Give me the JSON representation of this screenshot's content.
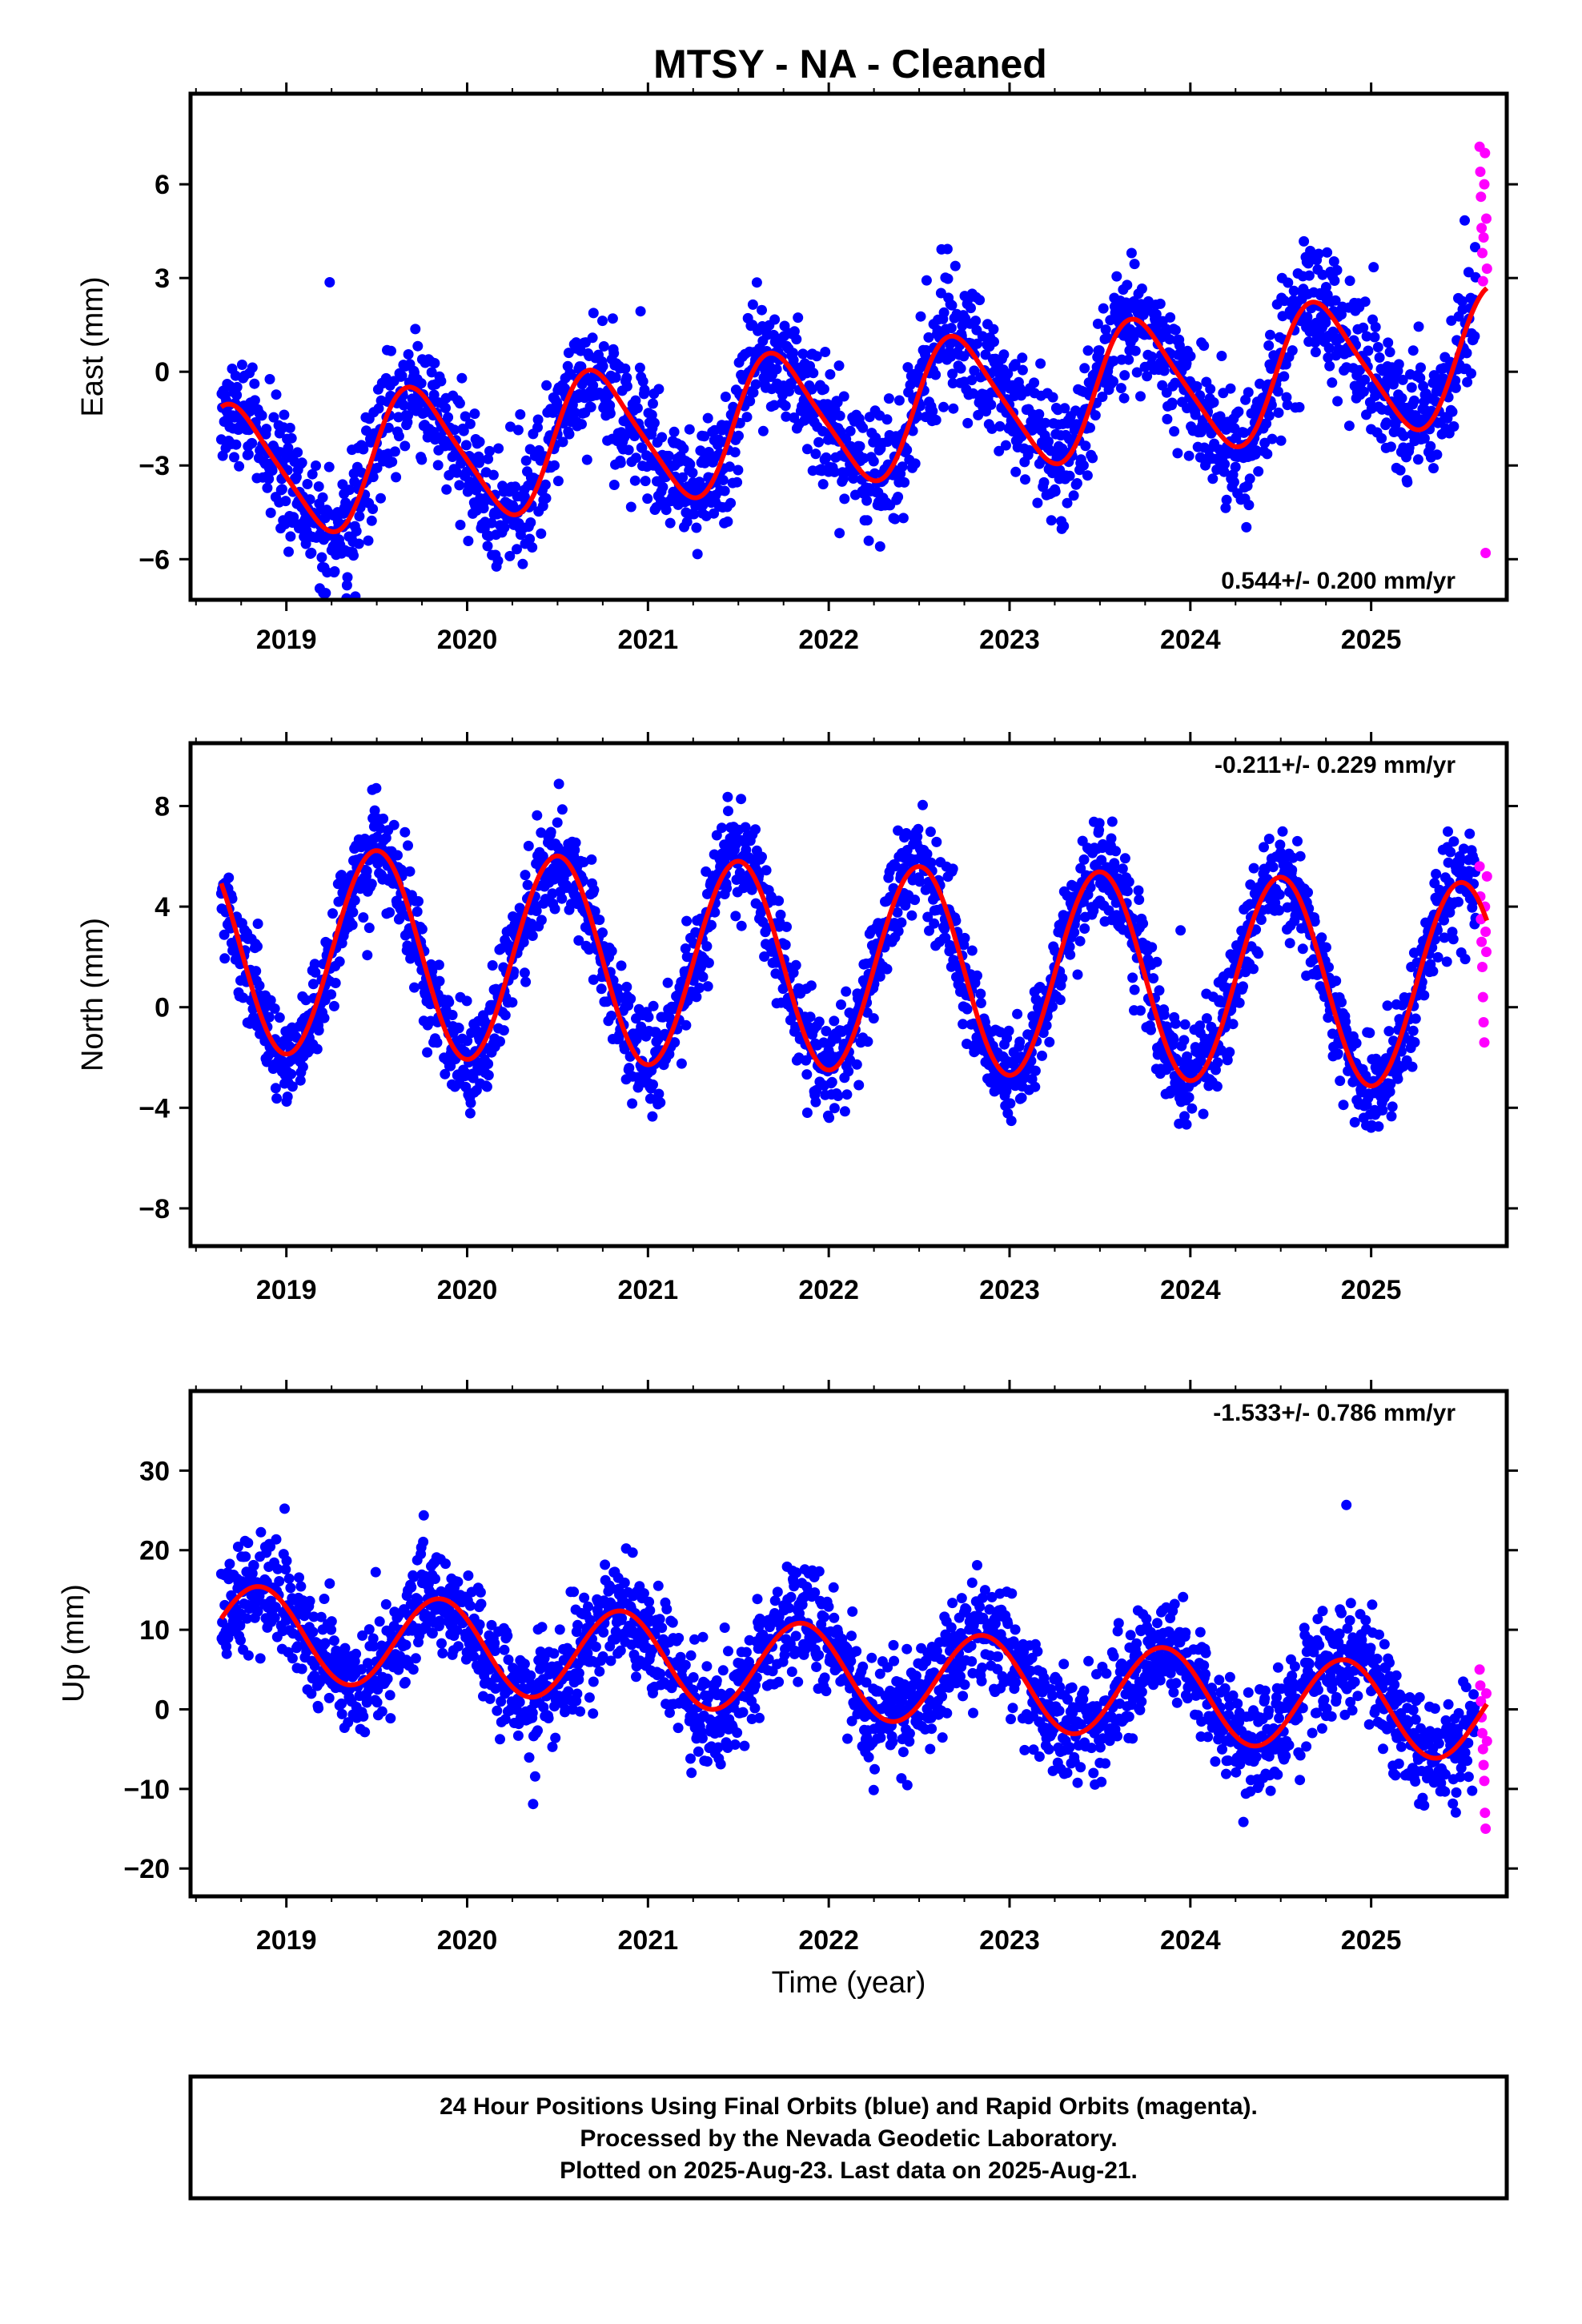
{
  "title": "MTSY  - NA - Cleaned",
  "xlabel": "Time (year)",
  "colors": {
    "final": "#0000ff",
    "rapid": "#ff00ff",
    "model": "#ff0000",
    "frame": "#000000"
  },
  "chart_data": [
    {
      "type": "scatter",
      "name_key": "east",
      "ylabel": "East (mm)",
      "rate_text": "0.544+/- 0.200 mm/yr",
      "xlim": [
        2018.47,
        2025.75
      ],
      "ylim": [
        -7.3,
        8.9
      ],
      "yticks": [
        -6,
        -3,
        0,
        3,
        6
      ],
      "xticks": [
        2019,
        2020,
        2021,
        2022,
        2023,
        2024,
        2025
      ],
      "tick_labels": [
        "−6",
        "−3",
        "0",
        "3",
        "6"
      ],
      "x_tick_labels": [
        "2019",
        "2020",
        "2021",
        "2022",
        "2023",
        "2024",
        "2025"
      ],
      "series": [
        {
          "label": "Final Orbits",
          "color": "#0000ff"
        },
        {
          "label": "Rapid Orbits",
          "color": "#ff00ff"
        },
        {
          "label": "Model",
          "color": "#ff0000"
        }
      ],
      "model": {
        "offset": -1.45,
        "rate": 0.544,
        "annual_amp": 2.1,
        "annual_peak": 2018.72,
        "semi_amp": 0.35,
        "semi_phase": 2018.6
      },
      "noise": 1.0,
      "rapid_values": [
        7.2,
        6.4,
        5.6,
        4.6,
        3.8,
        2.9,
        4.3,
        6.0,
        7.0,
        -5.8,
        4.9,
        3.3
      ]
    },
    {
      "type": "scatter",
      "name_key": "north",
      "ylabel": "North (mm)",
      "rate_text": "-0.211+/- 0.229 mm/yr",
      "xlim": [
        2018.47,
        2025.75
      ],
      "ylim": [
        -9.5,
        10.5
      ],
      "yticks": [
        -8,
        -4,
        0,
        4,
        8
      ],
      "xticks": [
        2019,
        2020,
        2021,
        2022,
        2023,
        2024,
        2025
      ],
      "tick_labels": [
        "−8",
        "−4",
        "0",
        "4",
        "8"
      ],
      "x_tick_labels": [
        "2019",
        "2020",
        "2021",
        "2022",
        "2023",
        "2024",
        "2025"
      ],
      "series": [
        {
          "label": "Final Orbits",
          "color": "#0000ff"
        },
        {
          "label": "Rapid Orbits",
          "color": "#ff00ff"
        },
        {
          "label": "Model",
          "color": "#ff0000"
        }
      ],
      "model": {
        "offset": 1.6,
        "rate": -0.211,
        "annual_amp": 4.1,
        "annual_peak": 2019.5,
        "semi_amp": 0.0,
        "semi_phase": 2019.0
      },
      "noise": 1.0,
      "rapid_values": [
        5.6,
        4.4,
        3.5,
        2.6,
        1.6,
        0.4,
        -0.6,
        -1.4,
        4.0,
        3.0,
        2.2,
        5.2
      ]
    },
    {
      "type": "scatter",
      "name_key": "up",
      "ylabel": "Up (mm)",
      "rate_text": "-1.533+/- 0.786 mm/yr",
      "xlim": [
        2018.47,
        2025.75
      ],
      "ylim": [
        -23.5,
        40
      ],
      "yticks": [
        -20,
        -10,
        0,
        10,
        20,
        30
      ],
      "xticks": [
        2019,
        2020,
        2021,
        2022,
        2023,
        2024,
        2025
      ],
      "tick_labels": [
        "−20",
        "−10",
        "0",
        "10",
        "20",
        "30"
      ],
      "x_tick_labels": [
        "2019",
        "2020",
        "2021",
        "2022",
        "2023",
        "2024",
        "2025"
      ],
      "series": [
        {
          "label": "Final Orbits",
          "color": "#0000ff"
        },
        {
          "label": "Rapid Orbits",
          "color": "#ff00ff"
        },
        {
          "label": "Model",
          "color": "#ff0000"
        }
      ],
      "model": {
        "offset": 4.8,
        "rate": -1.533,
        "annual_amp": 5.8,
        "annual_peak": 2018.85,
        "semi_amp": 0.0,
        "semi_phase": 2019.0
      },
      "noise": 3.4,
      "rapid_values": [
        5.0,
        3.0,
        1.0,
        -1.0,
        -3.0,
        -5.0,
        -7.0,
        -9.0,
        -13.0,
        -15.0,
        2.0,
        -4.0
      ]
    }
  ],
  "footer": {
    "line1": "24 Hour Positions Using Final Orbits (blue) and Rapid Orbits (magenta).",
    "line2": "Processed by the Nevada Geodetic Laboratory.",
    "line3": "Plotted on 2025-Aug-23. Last data on 2025-Aug-21."
  }
}
